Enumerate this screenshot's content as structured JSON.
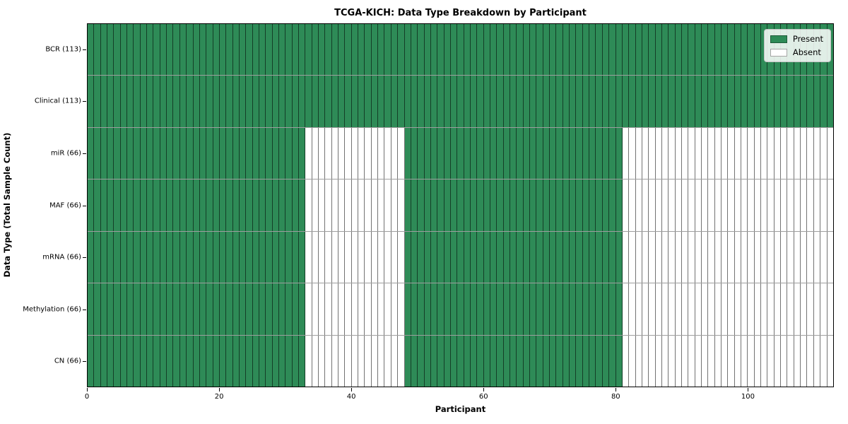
{
  "title": "TCGA-KICH: Data Type Breakdown by Participant",
  "xlabel": "Participant",
  "ylabel": "Data Type (Total Sample Count)",
  "legend": {
    "present_label": "Present",
    "absent_label": "Absent"
  },
  "colors": {
    "present": "#2e8b57",
    "absent": "#ffffff"
  },
  "chart_data": {
    "type": "heatmap",
    "title": "TCGA-KICH: Data Type Breakdown by Participant",
    "xlabel": "Participant",
    "ylabel": "Data Type (Total Sample Count)",
    "x_range": [
      0,
      113
    ],
    "n_participants": 113,
    "x_ticks": [
      0,
      20,
      40,
      60,
      80,
      100
    ],
    "grid": false,
    "legend_position": "upper-right",
    "legend_entries": [
      {
        "label": "Present",
        "color": "#2e8b57"
      },
      {
        "label": "Absent",
        "color": "#ffffff"
      }
    ],
    "rows": [
      {
        "label": "BCR (113)",
        "total_samples": 113,
        "present_ranges": [
          [
            0,
            113
          ]
        ]
      },
      {
        "label": "Clinical (113)",
        "total_samples": 113,
        "present_ranges": [
          [
            0,
            113
          ]
        ]
      },
      {
        "label": "miR (66)",
        "total_samples": 66,
        "present_ranges": [
          [
            0,
            33
          ],
          [
            48,
            81
          ]
        ]
      },
      {
        "label": "MAF (66)",
        "total_samples": 66,
        "present_ranges": [
          [
            0,
            33
          ],
          [
            48,
            81
          ]
        ]
      },
      {
        "label": "mRNA (66)",
        "total_samples": 66,
        "present_ranges": [
          [
            0,
            33
          ],
          [
            48,
            81
          ]
        ]
      },
      {
        "label": "Methylation (66)",
        "total_samples": 66,
        "present_ranges": [
          [
            0,
            33
          ],
          [
            48,
            81
          ]
        ]
      },
      {
        "label": "CN (66)",
        "total_samples": 66,
        "present_ranges": [
          [
            0,
            33
          ],
          [
            48,
            81
          ]
        ]
      }
    ]
  }
}
